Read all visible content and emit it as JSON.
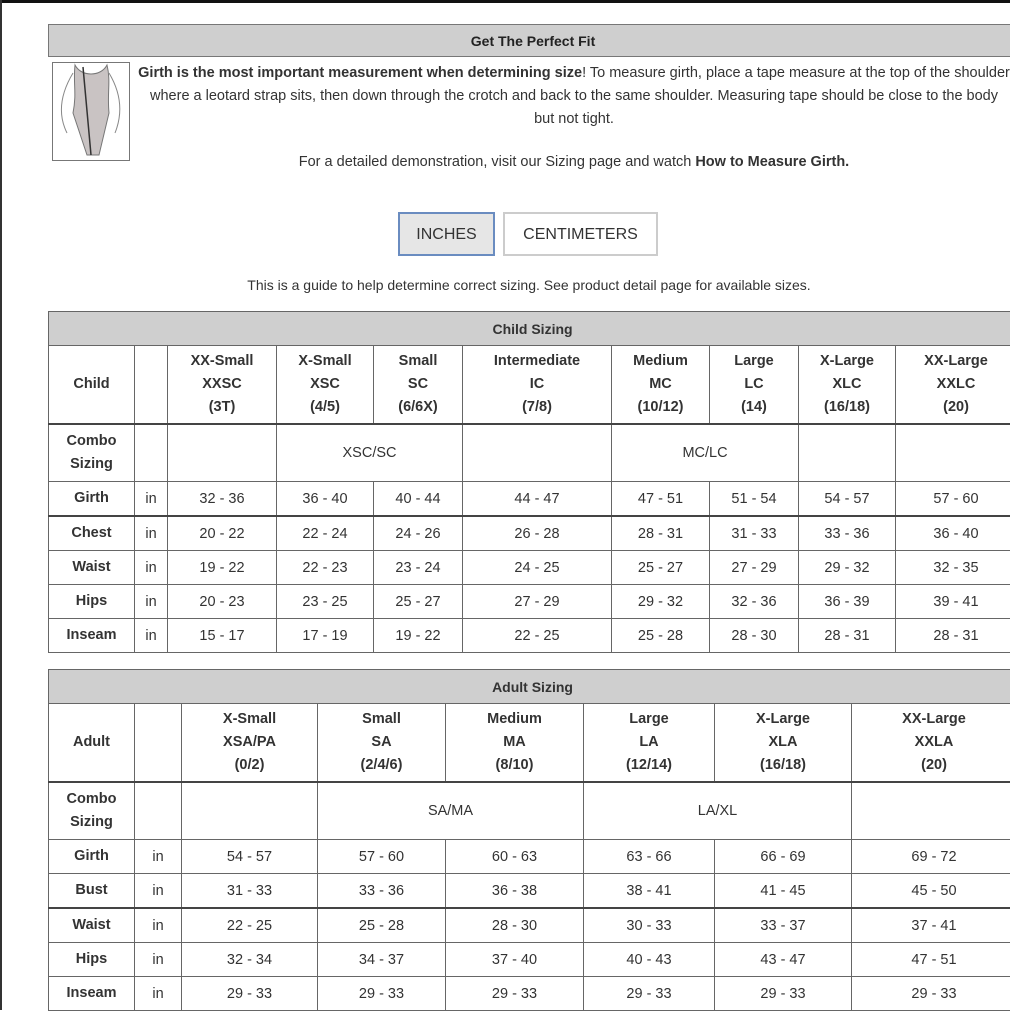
{
  "header": {
    "title": "Get The Perfect Fit"
  },
  "intro": {
    "bold": "Girth is the most important measurement when determining size",
    "text": "! To measure girth, place a tape measure at the top of the shoulder where a leotard strap sits, then down through the crotch and back to the same shoulder. Measuring tape should be close to the body but not tight."
  },
  "demo": {
    "text": "For a detailed demonstration, visit our Sizing page and watch ",
    "link": "How to Measure Girth."
  },
  "units": {
    "inches": "INCHES",
    "centimeters": "CENTIMETERS",
    "selected": "INCHES"
  },
  "guide": "This is a guide to help determine correct sizing. See product detail page for available sizes.",
  "child": {
    "title": "Child Sizing",
    "corner": "Child",
    "combo_label": "Combo Sizing",
    "unit": "in",
    "sizes": [
      [
        "XX-Small",
        "XXSC",
        "(3T)"
      ],
      [
        "X-Small",
        "XSC",
        "(4/5)"
      ],
      [
        "Small",
        "SC",
        "(6/6X)"
      ],
      [
        "Intermediate",
        "IC",
        "(7/8)"
      ],
      [
        "Medium",
        "MC",
        "(10/12)"
      ],
      [
        "Large",
        "LC",
        "(14)"
      ],
      [
        "X-Large",
        "XLC",
        "(16/18)"
      ],
      [
        "XX-Large",
        "XXLC",
        "(20)"
      ]
    ],
    "combo": [
      {
        "text": "",
        "span": 1
      },
      {
        "text": "XSC/SC",
        "span": 2
      },
      {
        "text": "",
        "span": 1
      },
      {
        "text": "MC/LC",
        "span": 2
      },
      {
        "text": "",
        "span": 1
      },
      {
        "text": "",
        "span": 1
      }
    ],
    "rows": [
      {
        "label": "Girth",
        "values": [
          "32 - 36",
          "36 - 40",
          "40 - 44",
          "44 - 47",
          "47 - 51",
          "51 - 54",
          "54 - 57",
          "57 - 60"
        ]
      },
      {
        "label": "Chest",
        "values": [
          "20 - 22",
          "22 - 24",
          "24 - 26",
          "26 - 28",
          "28 - 31",
          "31 - 33",
          "33 - 36",
          "36 - 40"
        ]
      },
      {
        "label": "Waist",
        "values": [
          "19 - 22",
          "22 - 23",
          "23 - 24",
          "24 - 25",
          "25 - 27",
          "27 - 29",
          "29 - 32",
          "32 - 35"
        ]
      },
      {
        "label": "Hips",
        "values": [
          "20 - 23",
          "23 - 25",
          "25 - 27",
          "27 - 29",
          "29 - 32",
          "32 - 36",
          "36 - 39",
          "39 - 41"
        ]
      },
      {
        "label": "Inseam",
        "values": [
          "15 - 17",
          "17 - 19",
          "19 - 22",
          "22 - 25",
          "25 - 28",
          "28 - 30",
          "28 - 31",
          "28 - 31"
        ]
      }
    ]
  },
  "adult": {
    "title": "Adult Sizing",
    "corner": "Adult",
    "combo_label": "Combo Sizing",
    "unit": "in",
    "sizes": [
      [
        "X-Small",
        "XSA/PA",
        "(0/2)"
      ],
      [
        "Small",
        "SA",
        "(2/4/6)"
      ],
      [
        "Medium",
        "MA",
        "(8/10)"
      ],
      [
        "Large",
        "LA",
        "(12/14)"
      ],
      [
        "X-Large",
        "XLA",
        "(16/18)"
      ],
      [
        "XX-Large",
        "XXLA",
        "(20)"
      ]
    ],
    "combo": [
      {
        "text": "",
        "span": 1
      },
      {
        "text": "SA/MA",
        "span": 2
      },
      {
        "text": "LA/XL",
        "span": 2
      },
      {
        "text": "",
        "span": 1
      }
    ],
    "rows": [
      {
        "label": "Girth",
        "values": [
          "54 - 57",
          "57 - 60",
          "60 - 63",
          "63 - 66",
          "66 - 69",
          "69 - 72"
        ]
      },
      {
        "label": "Bust",
        "values": [
          "31 - 33",
          "33 - 36",
          "36 - 38",
          "38 - 41",
          "41 - 45",
          "45 - 50"
        ]
      },
      {
        "label": "Waist",
        "values": [
          "22 - 25",
          "25 - 28",
          "28 - 30",
          "30 - 33",
          "33 - 37",
          "37 - 41"
        ]
      },
      {
        "label": "Hips",
        "values": [
          "32 - 34",
          "34 - 37",
          "37 - 40",
          "40 - 43",
          "43 - 47",
          "47 - 51"
        ]
      },
      {
        "label": "Inseam",
        "values": [
          "29 - 33",
          "29 - 33",
          "29 - 33",
          "29 - 33",
          "29 - 33",
          "29 - 33"
        ]
      }
    ]
  }
}
